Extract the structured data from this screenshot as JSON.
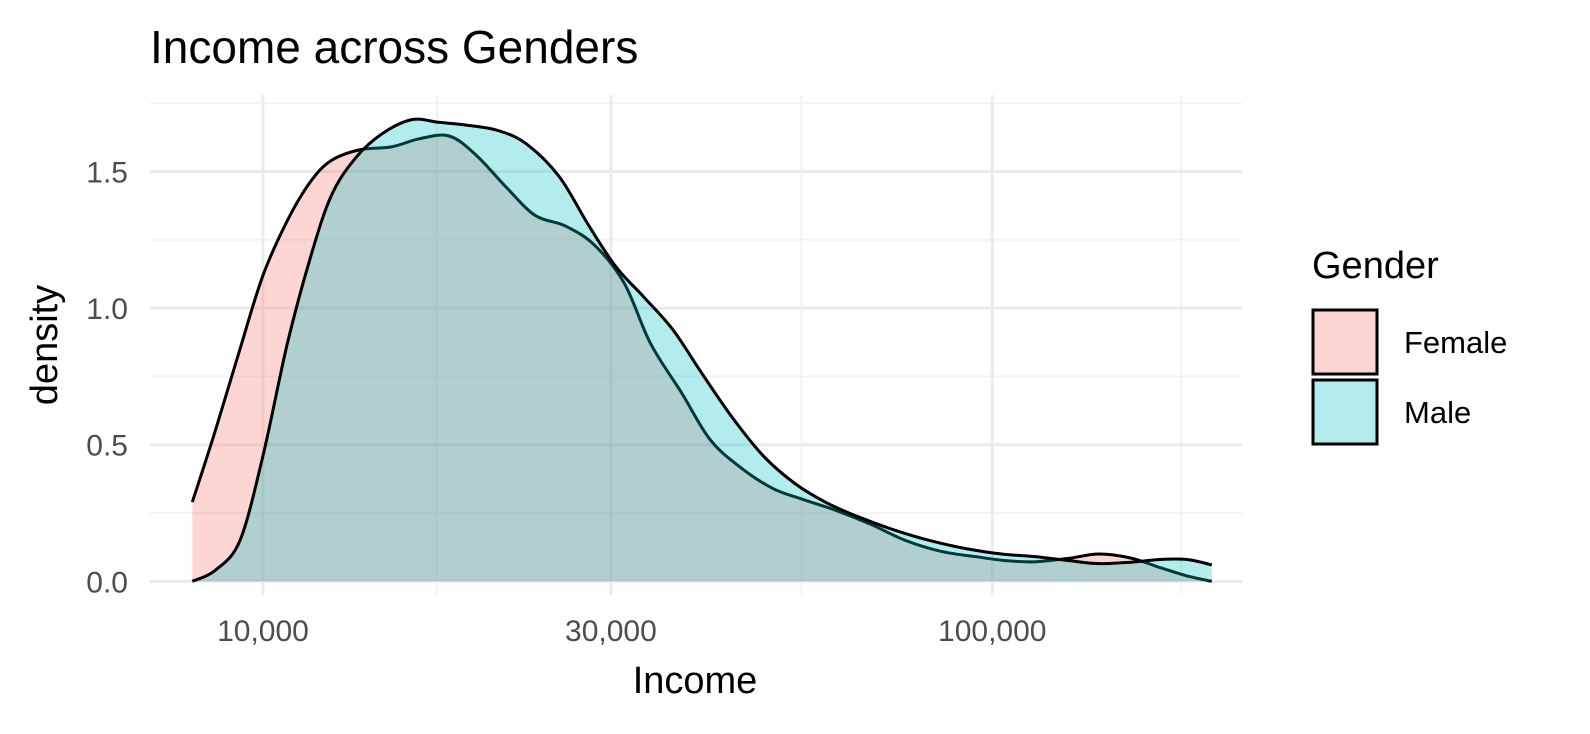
{
  "chart_data": {
    "type": "area",
    "title": "Income across Genders",
    "xlabel": "Income",
    "ylabel": "density",
    "x_scale": "log10",
    "xlim": [
      7000,
      220000
    ],
    "ylim": [
      -0.05,
      1.78
    ],
    "x_ticks": [
      10000,
      30000,
      100000
    ],
    "x_tick_labels": [
      "10,000",
      "30,000",
      "100,000"
    ],
    "y_ticks": [
      0.0,
      0.5,
      1.0,
      1.5
    ],
    "y_tick_labels": [
      "0.0",
      "0.5",
      "1.0",
      "1.5"
    ],
    "grid": true,
    "legend": {
      "title": "Gender",
      "position": "right"
    },
    "series": [
      {
        "name": "Female",
        "color": "#F8766D",
        "x": [
          8000,
          8600,
          9300,
          10000,
          10800,
          11600,
          12400,
          13600,
          15000,
          16400,
          18000,
          19600,
          21600,
          23600,
          26000,
          28500,
          31300,
          34000,
          37500,
          41000,
          45000,
          50000,
          55000,
          61000,
          68000,
          76000,
          85000,
          95000,
          105000,
          115000,
          128000,
          140000,
          155000,
          170000,
          185000,
          200000
        ],
        "y": [
          0.29,
          0.55,
          0.85,
          1.12,
          1.32,
          1.46,
          1.54,
          1.58,
          1.59,
          1.62,
          1.63,
          1.56,
          1.44,
          1.34,
          1.3,
          1.23,
          1.09,
          0.87,
          0.69,
          0.52,
          0.42,
          0.34,
          0.3,
          0.26,
          0.21,
          0.15,
          0.11,
          0.09,
          0.075,
          0.072,
          0.085,
          0.1,
          0.085,
          0.05,
          0.02,
          0.0
        ]
      },
      {
        "name": "Male",
        "color": "#00BFC4",
        "x": [
          8000,
          8600,
          9300,
          10000,
          10800,
          11600,
          12400,
          13400,
          14600,
          16000,
          17400,
          19000,
          21000,
          23000,
          25500,
          28000,
          30500,
          33300,
          36500,
          40000,
          44000,
          48500,
          53500,
          59000,
          65000,
          73000,
          82000,
          92000,
          103000,
          115000,
          128000,
          140000,
          155000,
          170000,
          185000,
          200000
        ],
        "y": [
          0.0,
          0.04,
          0.15,
          0.46,
          0.87,
          1.18,
          1.41,
          1.55,
          1.64,
          1.69,
          1.68,
          1.67,
          1.65,
          1.6,
          1.48,
          1.3,
          1.15,
          1.04,
          0.92,
          0.76,
          0.6,
          0.46,
          0.36,
          0.29,
          0.24,
          0.19,
          0.15,
          0.12,
          0.1,
          0.09,
          0.075,
          0.065,
          0.07,
          0.08,
          0.08,
          0.06
        ]
      }
    ]
  }
}
